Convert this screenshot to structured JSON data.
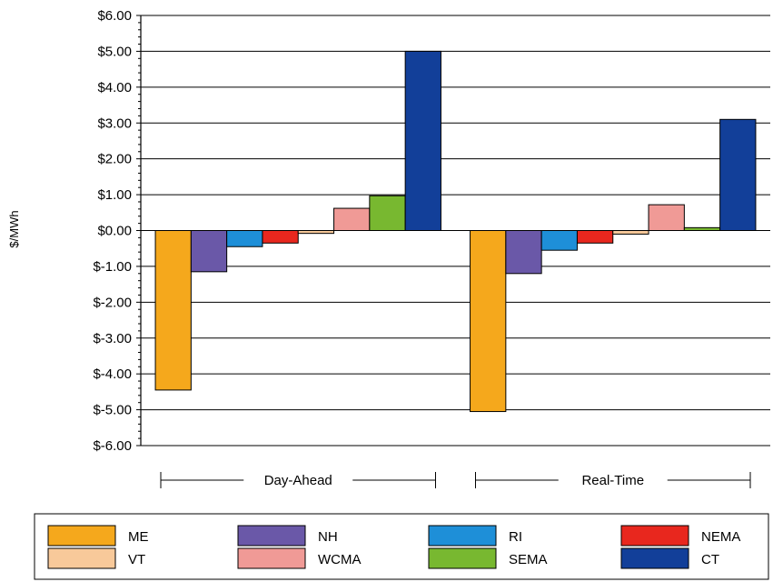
{
  "chart_data": {
    "type": "bar",
    "title": "",
    "xlabel": "",
    "ylabel": "$/MWh",
    "ylim": [
      -6,
      6
    ],
    "ytick_step": 1,
    "ytick_labels": [
      "$-6.00",
      "$-5.00",
      "$-4.00",
      "$-3.00",
      "$-2.00",
      "$-1.00",
      "$0.00",
      "$1.00",
      "$2.00",
      "$3.00",
      "$4.00",
      "$5.00",
      "$6.00"
    ],
    "grid": true,
    "legend_position": "bottom",
    "categories": [
      "Day-Ahead",
      "Real-Time"
    ],
    "series": [
      {
        "name": "ME",
        "color": "#F5A81C",
        "values": [
          -4.45,
          -5.05
        ]
      },
      {
        "name": "NH",
        "color": "#6A58A8",
        "values": [
          -1.15,
          -1.2
        ]
      },
      {
        "name": "RI",
        "color": "#1E8FD8",
        "values": [
          -0.45,
          -0.55
        ]
      },
      {
        "name": "NEMA",
        "color": "#E8271E",
        "values": [
          -0.35,
          -0.35
        ]
      },
      {
        "name": "VT",
        "color": "#F8C99A",
        "values": [
          -0.08,
          -0.1
        ]
      },
      {
        "name": "WCMA",
        "color": "#F09A96",
        "values": [
          0.62,
          0.72
        ]
      },
      {
        "name": "SEMA",
        "color": "#78B830",
        "values": [
          0.97,
          0.08
        ]
      },
      {
        "name": "CT",
        "color": "#123F99",
        "values": [
          5.0,
          3.1
        ]
      }
    ]
  }
}
